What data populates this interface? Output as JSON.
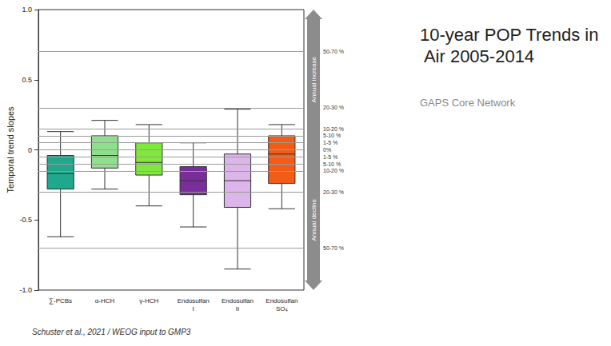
{
  "chart_data": {
    "type": "boxplot",
    "title": "10-year POP Trends in Air 2005-2014",
    "subtitle": "GAPS Core Network",
    "y_label": "Temporal trend slopes",
    "categories": [
      "∑-PCBs",
      "α-HCH",
      "γ-HCH",
      "Endosulfan I",
      "Endosulfan II",
      "Endosulfan SO₄"
    ],
    "boxes": [
      [
        -0.62,
        -0.28,
        -0.17,
        -0.04,
        0.13
      ],
      [
        -0.28,
        -0.13,
        -0.04,
        0.1,
        0.21
      ],
      [
        -0.4,
        -0.18,
        -0.09,
        0.05,
        0.18
      ],
      [
        -0.55,
        -0.32,
        -0.22,
        -0.12,
        0.05
      ],
      [
        -0.85,
        -0.41,
        -0.22,
        -0.03,
        0.29
      ],
      [
        -0.42,
        -0.24,
        -0.03,
        0.1,
        0.18
      ]
    ],
    "colors": [
      "#1fa88c",
      "#8fe08a",
      "#80e83c",
      "#7a2e9c",
      "#dcb6e8",
      "#f25c16"
    ],
    "ylim": [
      -1,
      1
    ],
    "yticks": [
      {
        "value": -1,
        "label": "-1.0"
      },
      -0.5,
      0,
      0.5,
      {
        "value": 1,
        "label": "1.0"
      }
    ],
    "grid": false,
    "reference_lines": [
      {
        "value": 0.7,
        "label": "50-70 %"
      },
      {
        "value": 0.3,
        "label": "20-30 %"
      },
      {
        "value": 0.15,
        "label": "10-20 %"
      },
      {
        "value": 0.1,
        "label": "5-10 %"
      },
      {
        "value": 0.05,
        "label": "1-5 %"
      },
      {
        "value": 0,
        "label": "0%"
      },
      {
        "value": -0.05,
        "label": "1-5 %"
      },
      {
        "value": -0.1,
        "label": "5-10 %"
      },
      {
        "value": -0.15,
        "label": "10-20 %"
      },
      {
        "value": -0.3,
        "label": "20-30 %"
      },
      {
        "value": -0.7,
        "label": "50-70 %"
      }
    ],
    "annotations": {
      "increase": "Annual increase",
      "decline": "Annual decline",
      "source": "Schuster et al., 2021 / WEOG input to GMP3"
    }
  }
}
